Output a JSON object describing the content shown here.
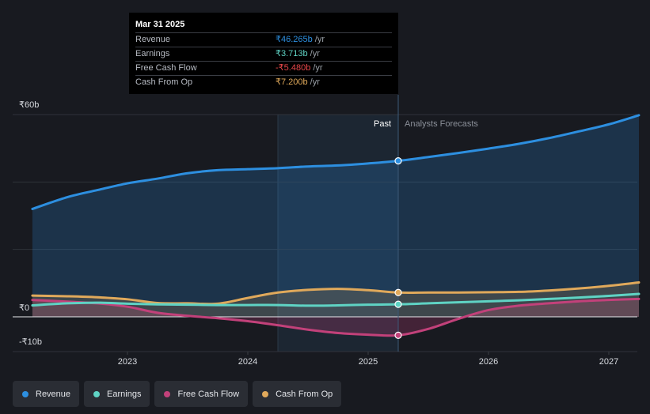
{
  "chart_data": {
    "type": "area",
    "title": "",
    "y_unit_prefix": "₹",
    "y_range": [
      -10,
      60
    ],
    "y_ticks": [
      {
        "value": 60,
        "label": "₹60b"
      },
      {
        "value": 0,
        "label": "₹0"
      },
      {
        "value": -10,
        "label": "-₹10b"
      }
    ],
    "x_range": [
      2022.2,
      2027.25
    ],
    "x_ticks": [
      {
        "value": 2023,
        "label": "2023"
      },
      {
        "value": 2024,
        "label": "2024"
      },
      {
        "value": 2025,
        "label": "2025"
      },
      {
        "value": 2026,
        "label": "2026"
      },
      {
        "value": 2027,
        "label": "2027"
      }
    ],
    "past_start": 2024.25,
    "divider_x": 2025.25,
    "past_label": "Past",
    "forecast_label": "Analysts Forecasts",
    "series": [
      {
        "name": "Revenue",
        "color": "#2d8fe0",
        "area": true,
        "points": [
          [
            2022.21,
            32.0
          ],
          [
            2022.5,
            35.5
          ],
          [
            2022.75,
            37.6
          ],
          [
            2023,
            39.6
          ],
          [
            2023.25,
            41.0
          ],
          [
            2023.5,
            42.6
          ],
          [
            2023.75,
            43.5
          ],
          [
            2024,
            43.8
          ],
          [
            2024.25,
            44.1
          ],
          [
            2024.5,
            44.6
          ],
          [
            2024.75,
            44.9
          ],
          [
            2025,
            45.5
          ],
          [
            2025.25,
            46.265
          ],
          [
            2025.5,
            47.4
          ],
          [
            2025.75,
            48.6
          ],
          [
            2026,
            49.9
          ],
          [
            2026.25,
            51.3
          ],
          [
            2026.5,
            53.0
          ],
          [
            2026.75,
            55.0
          ],
          [
            2027,
            57.1
          ],
          [
            2027.25,
            59.8
          ]
        ]
      },
      {
        "name": "Earnings",
        "color": "#5fd3c4",
        "area": false,
        "points": [
          [
            2022.21,
            3.4
          ],
          [
            2022.5,
            4.0
          ],
          [
            2022.75,
            4.2
          ],
          [
            2023,
            3.9
          ],
          [
            2023.25,
            3.7
          ],
          [
            2023.5,
            3.6
          ],
          [
            2023.75,
            3.5
          ],
          [
            2024,
            3.5
          ],
          [
            2024.25,
            3.5
          ],
          [
            2024.5,
            3.3
          ],
          [
            2024.75,
            3.4
          ],
          [
            2025,
            3.6
          ],
          [
            2025.25,
            3.713
          ],
          [
            2025.5,
            4.0
          ],
          [
            2025.75,
            4.3
          ],
          [
            2026,
            4.6
          ],
          [
            2026.25,
            4.9
          ],
          [
            2026.5,
            5.3
          ],
          [
            2026.75,
            5.7
          ],
          [
            2027,
            6.2
          ],
          [
            2027.25,
            6.8
          ]
        ]
      },
      {
        "name": "Free Cash Flow",
        "color": "#c2417a",
        "area": true,
        "points": [
          [
            2022.21,
            5.0
          ],
          [
            2022.5,
            4.5
          ],
          [
            2022.75,
            4.0
          ],
          [
            2023,
            3.0
          ],
          [
            2023.25,
            1.2
          ],
          [
            2023.5,
            0.3
          ],
          [
            2023.75,
            -0.4
          ],
          [
            2024,
            -1.3
          ],
          [
            2024.25,
            -2.5
          ],
          [
            2024.5,
            -3.8
          ],
          [
            2024.75,
            -4.8
          ],
          [
            2025,
            -5.3
          ],
          [
            2025.25,
            -5.48
          ],
          [
            2025.5,
            -3.6
          ],
          [
            2025.75,
            -0.6
          ],
          [
            2026,
            2.0
          ],
          [
            2026.25,
            3.3
          ],
          [
            2026.5,
            4.0
          ],
          [
            2026.75,
            4.6
          ],
          [
            2027,
            5.0
          ],
          [
            2027.25,
            5.3
          ]
        ]
      },
      {
        "name": "Cash From Op",
        "color": "#e0a95b",
        "area": true,
        "points": [
          [
            2022.21,
            6.3
          ],
          [
            2022.5,
            6.1
          ],
          [
            2022.75,
            5.8
          ],
          [
            2023,
            5.2
          ],
          [
            2023.25,
            4.1
          ],
          [
            2023.5,
            4.0
          ],
          [
            2023.75,
            3.9
          ],
          [
            2024,
            5.6
          ],
          [
            2024.25,
            7.2
          ],
          [
            2024.5,
            8.0
          ],
          [
            2024.75,
            8.3
          ],
          [
            2025,
            7.9
          ],
          [
            2025.25,
            7.2
          ],
          [
            2025.5,
            7.2
          ],
          [
            2025.75,
            7.2
          ],
          [
            2026,
            7.3
          ],
          [
            2026.25,
            7.4
          ],
          [
            2026.5,
            7.8
          ],
          [
            2026.75,
            8.4
          ],
          [
            2027,
            9.2
          ],
          [
            2027.25,
            10.2
          ]
        ]
      }
    ],
    "tooltip": {
      "date": "Mar 31 2025",
      "rows": [
        {
          "label": "Revenue",
          "value": "₹46.265b",
          "unit": "/yr",
          "color": "#2d8fe0"
        },
        {
          "label": "Earnings",
          "value": "₹3.713b",
          "unit": "/yr",
          "color": "#5fd3c4"
        },
        {
          "label": "Free Cash Flow",
          "value": "-₹5.480b",
          "unit": "/yr",
          "color": "#e8474a"
        },
        {
          "label": "Cash From Op",
          "value": "₹7.200b",
          "unit": "/yr",
          "color": "#e0a95b"
        }
      ]
    },
    "legend": [
      {
        "label": "Revenue",
        "color": "#2d8fe0"
      },
      {
        "label": "Earnings",
        "color": "#5fd3c4"
      },
      {
        "label": "Free Cash Flow",
        "color": "#c2417a"
      },
      {
        "label": "Cash From Op",
        "color": "#e0a95b"
      }
    ]
  }
}
